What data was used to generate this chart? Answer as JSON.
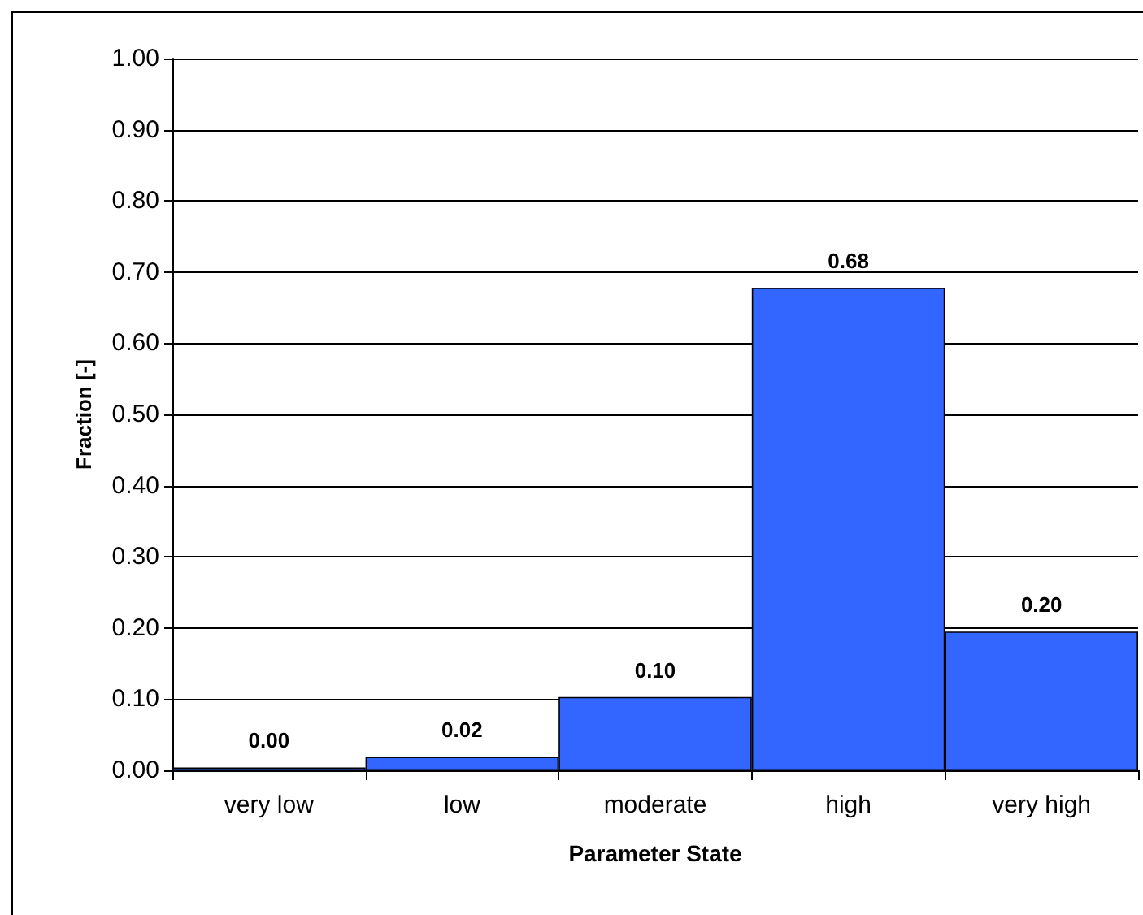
{
  "chart_data": {
    "type": "bar",
    "xlabel": "Parameter State",
    "ylabel": "Fraction [-]",
    "categories": [
      "very low",
      "low",
      "moderate",
      "high",
      "very high"
    ],
    "values": [
      0.004,
      0.019,
      0.103,
      0.678,
      0.195
    ],
    "color": "#3366ff",
    "value_labels": [
      "0.00",
      "0.02",
      "0.10",
      "0.68",
      "0.20"
    ],
    "ylim": [
      0,
      1
    ],
    "yticks": [
      {
        "value": 0,
        "label": "0.00"
      },
      {
        "value": 0.1,
        "label": "0.10"
      },
      {
        "value": 0.2,
        "label": "0.20"
      },
      {
        "value": 0.3,
        "label": "0.30"
      },
      {
        "value": 0.4,
        "label": "0.40"
      },
      {
        "value": 0.5,
        "label": "0.50"
      },
      {
        "value": 0.6,
        "label": "0.60"
      },
      {
        "value": 0.7,
        "label": "0.70"
      },
      {
        "value": 0.8,
        "label": "0.80"
      },
      {
        "value": 0.9,
        "label": "0.90"
      },
      {
        "value": 1,
        "label": "1.00"
      }
    ],
    "grid": "y"
  }
}
